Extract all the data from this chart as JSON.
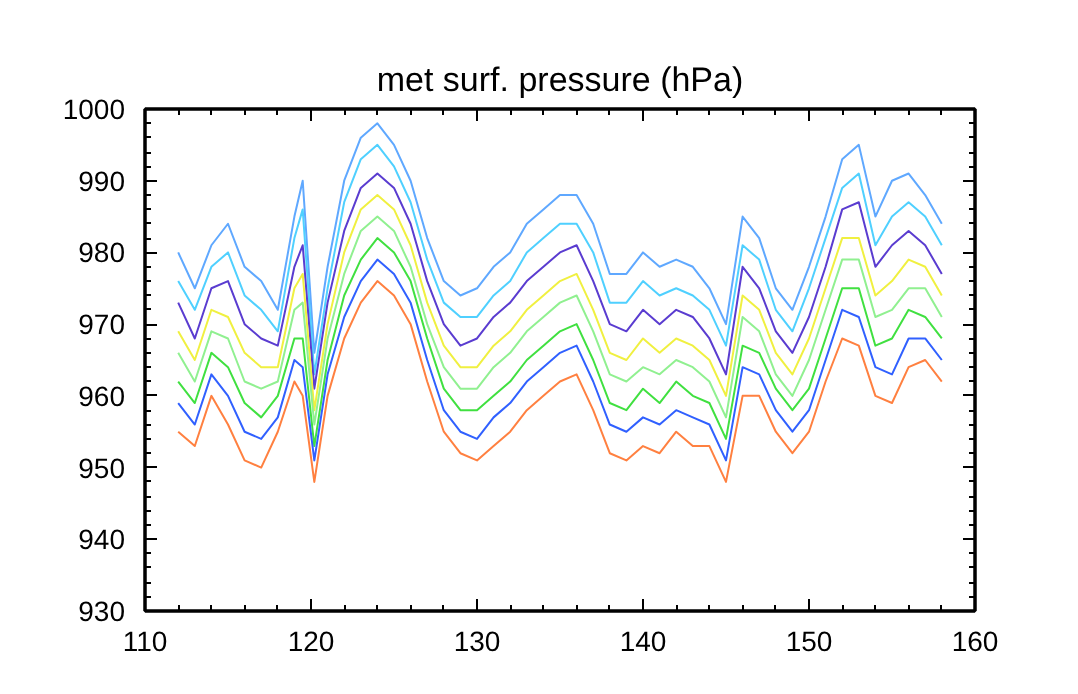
{
  "chart_data": {
    "type": "line",
    "title": "met surf. pressure (hPa)",
    "x": [
      112,
      113,
      114,
      115,
      116,
      117,
      118,
      119,
      119.5,
      120.2,
      121,
      122,
      123,
      124,
      125,
      126,
      127,
      128,
      129,
      130,
      131,
      132,
      133,
      134,
      135,
      136,
      137,
      138,
      139,
      140,
      141,
      142,
      143,
      144,
      145,
      146,
      147,
      148,
      149,
      150,
      151,
      152,
      153,
      154,
      155,
      156,
      157,
      158
    ],
    "series": [
      {
        "color": "#5fa8ff",
        "values": [
          980,
          975,
          981,
          984,
          978,
          976,
          972,
          985,
          990,
          966,
          978,
          990,
          996,
          998,
          995,
          990,
          982,
          976,
          974,
          975,
          978,
          980,
          984,
          986,
          988,
          988,
          984,
          977,
          977,
          980,
          978,
          979,
          978,
          975,
          970,
          985,
          982,
          975,
          972,
          978,
          985,
          993,
          995,
          985,
          990,
          991,
          988,
          984
        ]
      },
      {
        "color": "#4fd0ff",
        "values": [
          976,
          972,
          978,
          980,
          974,
          972,
          969,
          982,
          986,
          963,
          975,
          987,
          993,
          995,
          992,
          987,
          979,
          973,
          971,
          971,
          974,
          976,
          980,
          982,
          984,
          984,
          980,
          973,
          973,
          976,
          974,
          975,
          974,
          972,
          967,
          981,
          979,
          972,
          969,
          975,
          982,
          989,
          991,
          981,
          985,
          987,
          985,
          981
        ]
      },
      {
        "color": "#5a3cd0",
        "values": [
          973,
          968,
          975,
          976,
          970,
          968,
          967,
          978,
          981,
          961,
          973,
          983,
          989,
          991,
          989,
          984,
          976,
          970,
          967,
          968,
          971,
          973,
          976,
          978,
          980,
          981,
          976,
          970,
          969,
          972,
          970,
          972,
          971,
          968,
          963,
          978,
          975,
          969,
          966,
          971,
          978,
          986,
          987,
          978,
          981,
          983,
          981,
          977
        ]
      },
      {
        "color": "#f0f040",
        "values": [
          969,
          965,
          972,
          971,
          966,
          964,
          964,
          975,
          977,
          958,
          970,
          980,
          986,
          988,
          986,
          981,
          973,
          967,
          964,
          964,
          967,
          969,
          972,
          974,
          976,
          977,
          972,
          966,
          965,
          968,
          966,
          968,
          967,
          965,
          960,
          974,
          972,
          966,
          963,
          968,
          975,
          982,
          982,
          974,
          976,
          979,
          978,
          974
        ]
      },
      {
        "color": "#90f090",
        "values": [
          966,
          962,
          969,
          968,
          962,
          961,
          962,
          972,
          973,
          956,
          968,
          977,
          983,
          985,
          983,
          978,
          970,
          964,
          961,
          961,
          964,
          966,
          969,
          971,
          973,
          974,
          969,
          963,
          962,
          964,
          963,
          965,
          964,
          962,
          957,
          971,
          969,
          963,
          960,
          965,
          972,
          979,
          979,
          971,
          972,
          975,
          975,
          971
        ]
      },
      {
        "color": "#40e040",
        "values": [
          962,
          959,
          966,
          964,
          959,
          957,
          960,
          968,
          968,
          953,
          965,
          974,
          979,
          982,
          980,
          976,
          968,
          961,
          958,
          958,
          960,
          962,
          965,
          967,
          969,
          970,
          965,
          959,
          958,
          961,
          959,
          962,
          960,
          959,
          954,
          967,
          966,
          961,
          958,
          961,
          968,
          975,
          975,
          967,
          968,
          972,
          971,
          968
        ]
      },
      {
        "color": "#3060ff",
        "values": [
          959,
          956,
          963,
          960,
          955,
          954,
          957,
          965,
          964,
          951,
          963,
          971,
          976,
          979,
          977,
          973,
          965,
          958,
          955,
          954,
          957,
          959,
          962,
          964,
          966,
          967,
          962,
          956,
          955,
          957,
          956,
          958,
          957,
          956,
          951,
          964,
          963,
          958,
          955,
          958,
          965,
          972,
          971,
          964,
          963,
          968,
          968,
          965
        ]
      },
      {
        "color": "#ff8040",
        "values": [
          955,
          953,
          960,
          956,
          951,
          950,
          955,
          962,
          960,
          948,
          960,
          968,
          973,
          976,
          974,
          970,
          962,
          955,
          952,
          951,
          953,
          955,
          958,
          960,
          962,
          963,
          958,
          952,
          951,
          953,
          952,
          955,
          953,
          953,
          948,
          960,
          960,
          955,
          952,
          955,
          962,
          968,
          967,
          960,
          959,
          964,
          965,
          962
        ]
      }
    ],
    "xlim": [
      110,
      160
    ],
    "xticks": [
      110,
      120,
      130,
      140,
      150,
      160
    ],
    "ylim": [
      930,
      1000
    ],
    "yticks": [
      930,
      940,
      950,
      960,
      970,
      980,
      990,
      1000
    ],
    "grid": false
  }
}
